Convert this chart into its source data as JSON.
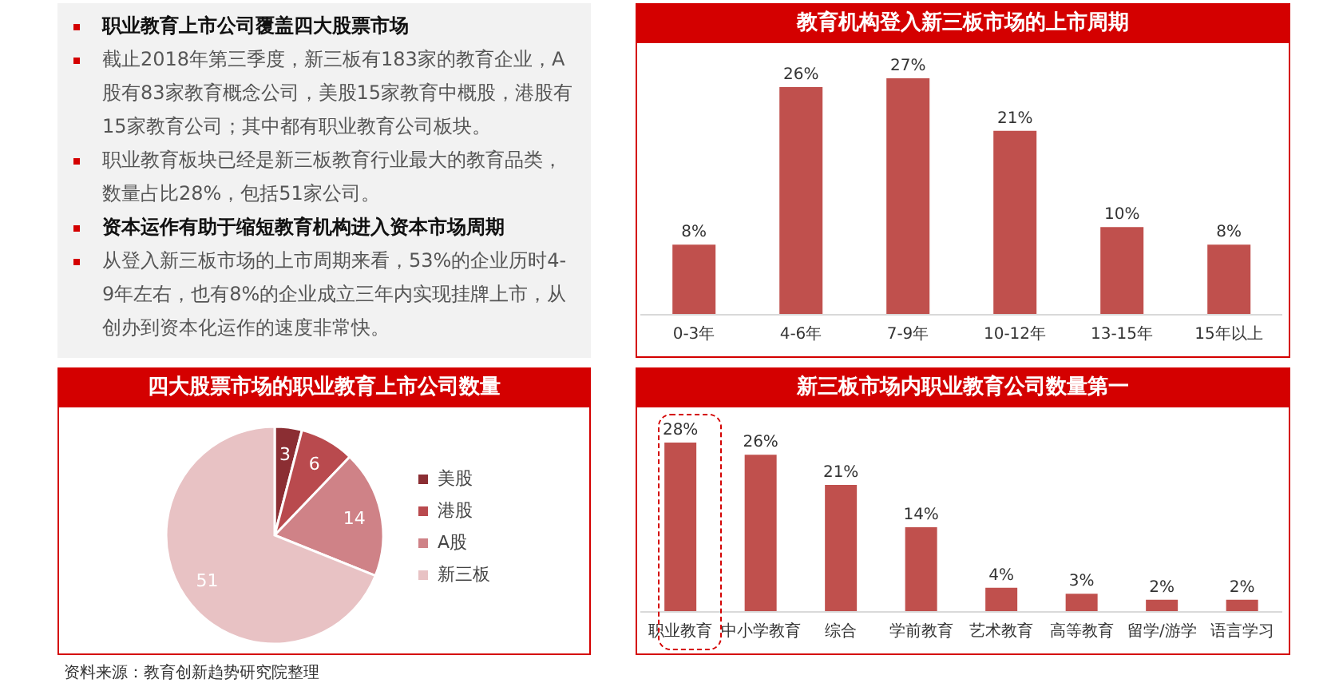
{
  "chart_data": [
    {
      "type": "other",
      "title": "职业教育上市公司覆盖四大股票市场",
      "annotations": [
        "截止2018年第三季度，新三板有183家的教育企业，A股有83家教育概念公司，美股15家教育中概股，港股有15家教育公司；其中都有职业教育公司板块。",
        "职业教育板块已经是新三板教育行业最大的教育品类，数量占比28%，包括51家公司。"
      ]
    },
    {
      "type": "other",
      "title": "资本运作有助于缩短教育机构进入资本市场周期",
      "annotations": [
        "从登入新三板市场的上市周期来看，53%的企业历时4-9年左右，也有8%的企业成立三年内实现挂牌上市，从创办到资本化运作的速度非常快。"
      ]
    },
    {
      "type": "bar",
      "title": "教育机构登入新三板市场的上市周期",
      "categories": [
        "0-3年",
        "4-6年",
        "7-9年",
        "10-12年",
        "13-15年",
        "15年以上"
      ],
      "values": [
        8,
        26,
        27,
        21,
        10,
        8
      ],
      "value_labels": [
        "8%",
        "26%",
        "27%",
        "21%",
        "10%",
        "8%"
      ],
      "color": "#c0504d",
      "grid": false,
      "legend": false
    },
    {
      "type": "pie",
      "title": "四大股票市场的职业教育上市公司数量",
      "categories": [
        "美股",
        "港股",
        "A股",
        "新三板"
      ],
      "values": [
        3,
        6,
        14,
        51
      ],
      "colors": [
        "#8b2e33",
        "#b94a4e",
        "#cf8287",
        "#e8c2c4"
      ],
      "data_labels": true,
      "legend": "right",
      "annotations": [
        "资料来源：教育创新趋势研究院整理"
      ]
    },
    {
      "type": "bar",
      "title": "新三板市场内职业教育公司数量第一",
      "categories": [
        "职业教育",
        "中小学教育",
        "综合",
        "学前教育",
        "艺术教育",
        "高等教育",
        "留学/游学",
        "语言学习"
      ],
      "values": [
        28,
        26,
        21,
        14,
        4,
        3,
        2,
        2
      ],
      "value_labels": [
        "28%",
        "26%",
        "21%",
        "14%",
        "4%",
        "3%",
        "2%",
        "2%"
      ],
      "color": "#c0504d",
      "grid": false,
      "legend": false
    }
  ]
}
